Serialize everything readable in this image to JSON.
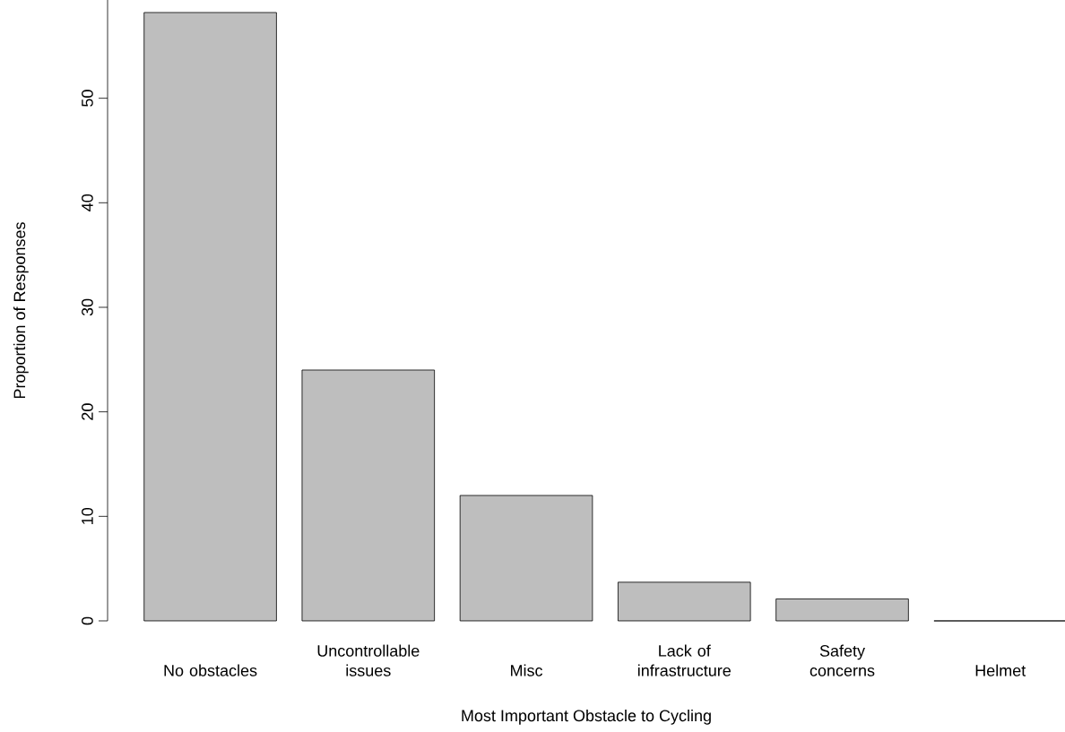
{
  "chart_data": {
    "type": "bar",
    "xlabel": "Most Important Obstacle to Cycling",
    "ylabel": "Proportion of Responses",
    "categories": [
      "No obstacles",
      "Uncontrollable issues",
      "Misc",
      "Lack of infrastructure",
      "Safety concerns",
      "Helmet"
    ],
    "values": [
      58.2,
      24.0,
      12.0,
      3.7,
      2.1,
      0
    ],
    "color": "#bebebe",
    "ylim": [
      0,
      59.4
    ],
    "yticks": [
      0,
      10,
      20,
      30,
      40,
      50
    ],
    "grid": false
  }
}
